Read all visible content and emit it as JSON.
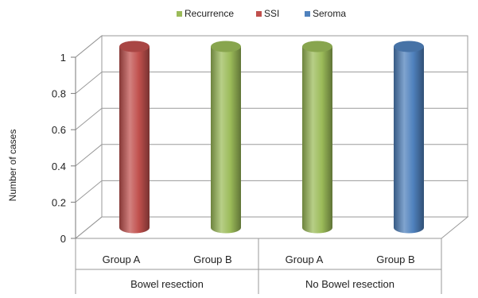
{
  "chart_data": {
    "type": "bar",
    "style": "3d-cylinder",
    "ylabel": "Number of cases",
    "ylim": [
      0,
      1
    ],
    "yticks": [
      "0",
      "0.2",
      "0.4",
      "0.6",
      "0.8",
      "1"
    ],
    "grid": true,
    "legend_position": "top",
    "series": [
      {
        "name": "Recurrence",
        "color": "#9bbb59"
      },
      {
        "name": "SSI",
        "color": "#c0504d"
      },
      {
        "name": "Seroma",
        "color": "#4f81bd"
      }
    ],
    "groups": [
      {
        "label": "Bowel resection",
        "categories": [
          "Group A",
          "Group B"
        ]
      },
      {
        "label": "No Bowel resection",
        "categories": [
          "Group A",
          "Group B"
        ]
      }
    ],
    "bars": [
      {
        "group": "Bowel resection",
        "category": "Group A",
        "series": "SSI",
        "value": 1
      },
      {
        "group": "Bowel resection",
        "category": "Group B",
        "series": "Recurrence",
        "value": 1
      },
      {
        "group": "No Bowel resection",
        "category": "Group A",
        "series": "Recurrence",
        "value": 1
      },
      {
        "group": "No Bowel resection",
        "category": "Group B",
        "series": "Seroma",
        "value": 1
      }
    ]
  }
}
